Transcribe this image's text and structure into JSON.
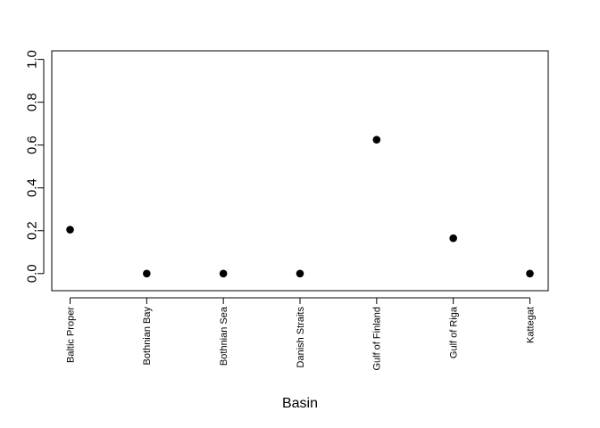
{
  "chart_data": {
    "type": "scatter",
    "title": "",
    "xlabel": "Basin",
    "ylabel": "",
    "categories": [
      "Baltic Proper",
      "Bothnian Bay",
      "Bothnian Sea",
      "Danish Straits",
      "Gulf of Finland",
      "Gulf of Riga",
      "Kattegat"
    ],
    "values": [
      0.205,
      0.0,
      0.0,
      0.0,
      0.625,
      0.165,
      0.0
    ],
    "ylim": [
      -0.08,
      1.04
    ],
    "yticks": [
      "0.0",
      "0.2",
      "0.4",
      "0.6",
      "0.8",
      "1.0"
    ],
    "grid": false,
    "legend": "none",
    "colors": {
      "point": "#000000",
      "axis": "#000000"
    }
  }
}
